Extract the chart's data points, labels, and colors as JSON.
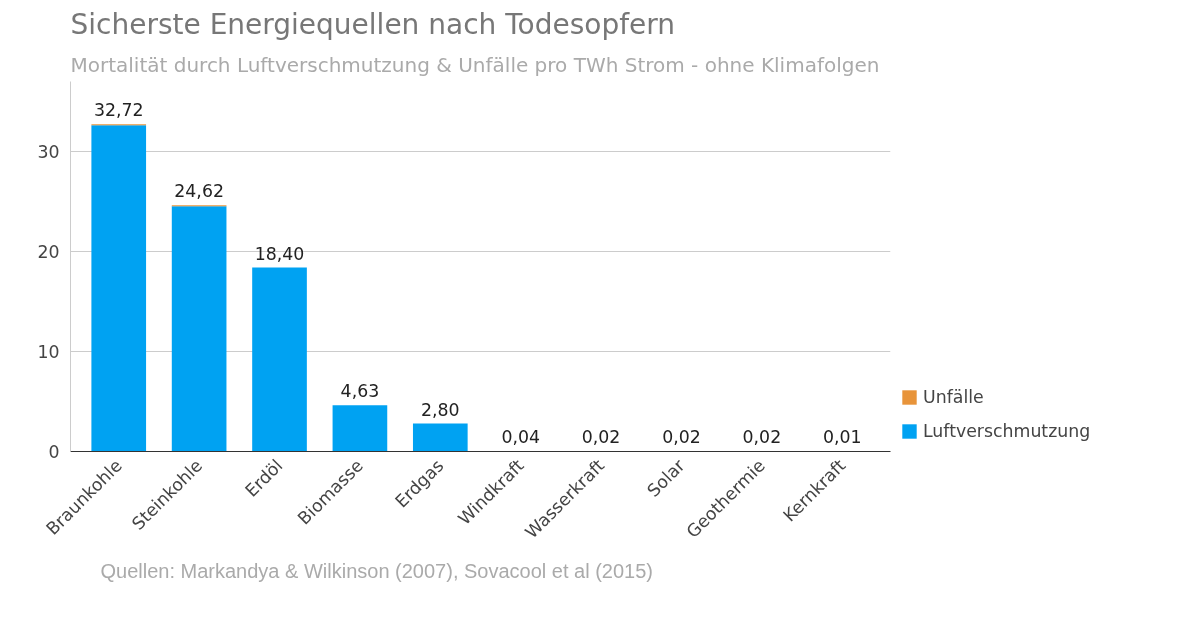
{
  "chart_data": {
    "type": "bar",
    "title": "Sicherste Energiequellen nach Todesopfern",
    "subtitle": "Mortalität durch Luftverschmutzung & Unfälle pro TWh Strom - ohne Klimafolgen",
    "categories": [
      "Braunkohle",
      "Steinkohle",
      "Erdöl",
      "Biomasse",
      "Erdgas",
      "Windkraft",
      "Wasserkraft",
      "Solar",
      "Geothermie",
      "Kernkraft"
    ],
    "stacked": true,
    "series": [
      {
        "name": "Luftverschmutzung",
        "color": "#00a2f2",
        "values": [
          32.62,
          24.52,
          18.4,
          4.63,
          2.8,
          0.04,
          0.02,
          0.02,
          0.02,
          0.01
        ]
      },
      {
        "name": "Unfälle",
        "color": "#e8943a",
        "values": [
          0.1,
          0.1,
          0,
          0,
          0,
          0,
          0,
          0,
          0,
          0
        ]
      }
    ],
    "totals": [
      "32,72",
      "24,62",
      "18,40",
      "4,63",
      "2,80",
      "0,04",
      "0,02",
      "0,02",
      "0,02",
      "0,01"
    ],
    "ylim": [
      0,
      37
    ],
    "yticks": [
      0,
      10,
      20,
      30
    ],
    "grid": "y",
    "legend": "right",
    "annotations": [
      "Quellen: Markandya & Wilkinson (2007), Sovacool et al (2015)"
    ]
  }
}
